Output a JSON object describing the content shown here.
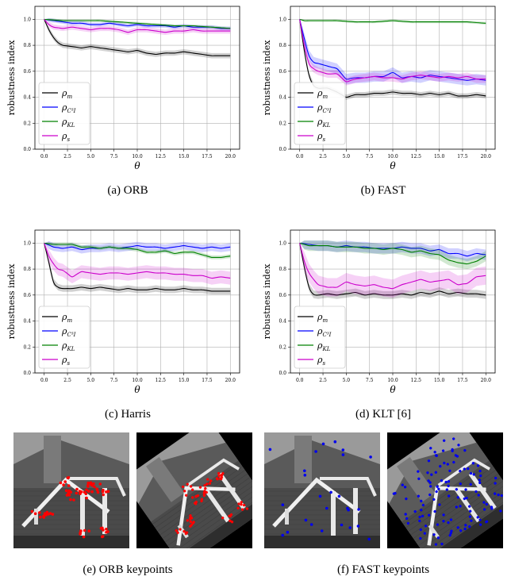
{
  "chart_data": [
    {
      "type": "line",
      "ylabel": "robustness index",
      "xlabel": "θ",
      "xlim": [
        -1,
        21
      ],
      "ylim": [
        0,
        1.1
      ],
      "xticks": [
        "0.0",
        "2.5",
        "5.0",
        "7.5",
        "10.0",
        "12.5",
        "15.0",
        "17.5",
        "20.0"
      ],
      "yticks": [
        "0.0",
        "0.2",
        "0.4",
        "0.6",
        "0.8",
        "1.0"
      ],
      "grid": true,
      "legend_placement": "lower-left",
      "caption": "(a) ORB",
      "series": [
        {
          "name": "ρm",
          "color": "#000000",
          "band": 0.02,
          "x": [
            0,
            0.5,
            1,
            1.5,
            2,
            3,
            4,
            5,
            6,
            7,
            8,
            9,
            10,
            11,
            12,
            13,
            14,
            15,
            16,
            17,
            18,
            19,
            20
          ],
          "values": [
            1.0,
            0.92,
            0.86,
            0.82,
            0.8,
            0.79,
            0.78,
            0.79,
            0.78,
            0.77,
            0.76,
            0.75,
            0.76,
            0.74,
            0.73,
            0.74,
            0.74,
            0.75,
            0.74,
            0.73,
            0.72,
            0.72,
            0.72
          ]
        },
        {
          "name": "ρC3I",
          "color": "#0000ff",
          "band": 0.015,
          "x": [
            0,
            1,
            2,
            3,
            4,
            5,
            6,
            7,
            8,
            9,
            10,
            11,
            12,
            13,
            14,
            15,
            16,
            17,
            18,
            19,
            20
          ],
          "values": [
            1.0,
            0.99,
            0.98,
            0.97,
            0.97,
            0.96,
            0.96,
            0.97,
            0.96,
            0.95,
            0.96,
            0.95,
            0.95,
            0.95,
            0.94,
            0.95,
            0.94,
            0.94,
            0.94,
            0.93,
            0.93
          ]
        },
        {
          "name": "ρKL",
          "color": "#008000",
          "band": 0.01,
          "x": [
            0,
            2,
            4,
            6,
            8,
            10,
            12,
            14,
            16,
            18,
            20
          ],
          "values": [
            1.0,
            0.99,
            0.99,
            0.99,
            0.98,
            0.97,
            0.96,
            0.95,
            0.95,
            0.94,
            0.93
          ]
        },
        {
          "name": "ρs",
          "color": "#cc00cc",
          "band": 0.02,
          "x": [
            0,
            0.5,
            1,
            2,
            3,
            4,
            5,
            6,
            7,
            8,
            9,
            10,
            11,
            12,
            13,
            14,
            15,
            16,
            17,
            18,
            19,
            20
          ],
          "values": [
            1.0,
            0.96,
            0.94,
            0.93,
            0.94,
            0.93,
            0.92,
            0.93,
            0.93,
            0.92,
            0.9,
            0.92,
            0.92,
            0.91,
            0.9,
            0.91,
            0.91,
            0.92,
            0.91,
            0.91,
            0.91,
            0.91
          ]
        }
      ]
    },
    {
      "type": "line",
      "ylabel": "robustness index",
      "xlabel": "θ",
      "xlim": [
        -1,
        21
      ],
      "ylim": [
        0,
        1.1
      ],
      "xticks": [
        "0.0",
        "2.5",
        "5.0",
        "7.5",
        "10.0",
        "12.5",
        "15.0",
        "17.5",
        "20.0"
      ],
      "yticks": [
        "0.0",
        "0.2",
        "0.4",
        "0.6",
        "0.8",
        "1.0"
      ],
      "grid": true,
      "legend_placement": "lower-left",
      "caption": "(b) FAST",
      "series": [
        {
          "name": "ρm",
          "color": "#000000",
          "band": 0.02,
          "x": [
            0,
            0.4,
            0.8,
            1.2,
            1.6,
            2,
            3,
            4,
            5,
            6,
            7,
            8,
            9,
            10,
            11,
            12,
            13,
            14,
            15,
            16,
            17,
            18,
            19,
            20
          ],
          "values": [
            1.0,
            0.8,
            0.62,
            0.52,
            0.48,
            0.47,
            0.47,
            0.44,
            0.4,
            0.42,
            0.42,
            0.43,
            0.43,
            0.44,
            0.43,
            0.43,
            0.42,
            0.43,
            0.42,
            0.43,
            0.41,
            0.41,
            0.42,
            0.41
          ]
        },
        {
          "name": "ρC3I",
          "color": "#0000ff",
          "band": 0.04,
          "x": [
            0,
            0.5,
            1,
            1.5,
            2,
            3,
            4,
            5,
            6,
            7,
            8,
            9,
            10,
            11,
            12,
            13,
            14,
            15,
            16,
            17,
            18,
            19,
            20
          ],
          "values": [
            1.0,
            0.85,
            0.72,
            0.67,
            0.66,
            0.64,
            0.62,
            0.54,
            0.55,
            0.55,
            0.56,
            0.56,
            0.59,
            0.55,
            0.56,
            0.55,
            0.57,
            0.56,
            0.55,
            0.54,
            0.53,
            0.54,
            0.53
          ]
        },
        {
          "name": "ρKL",
          "color": "#008000",
          "band": 0.01,
          "x": [
            0,
            0.5,
            1,
            2,
            4,
            6,
            8,
            10,
            12,
            14,
            16,
            18,
            20
          ],
          "values": [
            1.0,
            0.99,
            0.99,
            0.99,
            0.99,
            0.98,
            0.98,
            0.99,
            0.98,
            0.98,
            0.98,
            0.98,
            0.97
          ]
        },
        {
          "name": "ρs",
          "color": "#cc00cc",
          "band": 0.03,
          "x": [
            0,
            0.5,
            1,
            1.5,
            2,
            3,
            4,
            5,
            6,
            7,
            8,
            9,
            10,
            11,
            12,
            13,
            14,
            15,
            16,
            17,
            18,
            19,
            20
          ],
          "values": [
            1.0,
            0.8,
            0.66,
            0.62,
            0.6,
            0.58,
            0.58,
            0.52,
            0.54,
            0.55,
            0.56,
            0.55,
            0.55,
            0.54,
            0.56,
            0.57,
            0.56,
            0.55,
            0.56,
            0.55,
            0.56,
            0.54,
            0.54
          ]
        }
      ]
    },
    {
      "type": "line",
      "ylabel": "robustness index",
      "xlabel": "θ",
      "xlim": [
        -1,
        21
      ],
      "ylim": [
        0,
        1.1
      ],
      "xticks": [
        "0.0",
        "2.5",
        "5.0",
        "7.5",
        "10.0",
        "12.5",
        "15.0",
        "17.5",
        "20.0"
      ],
      "yticks": [
        "0.0",
        "0.2",
        "0.4",
        "0.6",
        "0.8",
        "1.0"
      ],
      "grid": true,
      "legend_placement": "lower-left",
      "caption": "(c) Harris",
      "series": [
        {
          "name": "ρm",
          "color": "#000000",
          "band": 0.025,
          "x": [
            0,
            0.5,
            1,
            1.5,
            2,
            3,
            4,
            5,
            6,
            7,
            8,
            9,
            10,
            11,
            12,
            13,
            14,
            15,
            16,
            17,
            18,
            19,
            20
          ],
          "values": [
            1.0,
            0.85,
            0.7,
            0.66,
            0.65,
            0.65,
            0.66,
            0.65,
            0.66,
            0.65,
            0.64,
            0.65,
            0.64,
            0.64,
            0.65,
            0.64,
            0.64,
            0.65,
            0.64,
            0.64,
            0.63,
            0.63,
            0.63
          ]
        },
        {
          "name": "ρC3I",
          "color": "#0000ff",
          "band": 0.03,
          "x": [
            0,
            1,
            2,
            3,
            4,
            5,
            6,
            7,
            8,
            9,
            10,
            11,
            12,
            13,
            14,
            15,
            16,
            17,
            18,
            19,
            20
          ],
          "values": [
            1.0,
            0.97,
            0.96,
            0.97,
            0.95,
            0.96,
            0.96,
            0.97,
            0.96,
            0.97,
            0.98,
            0.97,
            0.97,
            0.96,
            0.97,
            0.98,
            0.97,
            0.96,
            0.97,
            0.96,
            0.97
          ]
        },
        {
          "name": "ρKL",
          "color": "#008000",
          "band": 0.015,
          "x": [
            0,
            1,
            2,
            3,
            4,
            5,
            6,
            7,
            8,
            9,
            10,
            11,
            12,
            13,
            14,
            15,
            16,
            17,
            18,
            19,
            20
          ],
          "values": [
            1.0,
            0.99,
            0.99,
            0.99,
            0.97,
            0.97,
            0.96,
            0.97,
            0.96,
            0.96,
            0.95,
            0.93,
            0.93,
            0.94,
            0.92,
            0.93,
            0.93,
            0.91,
            0.89,
            0.89,
            0.9
          ]
        },
        {
          "name": "ρs",
          "color": "#cc00cc",
          "band": 0.05,
          "x": [
            0,
            0.5,
            1,
            1.5,
            2,
            3,
            4,
            5,
            6,
            7,
            8,
            9,
            10,
            11,
            12,
            13,
            14,
            15,
            16,
            17,
            18,
            19,
            20
          ],
          "values": [
            1.0,
            0.9,
            0.84,
            0.8,
            0.79,
            0.74,
            0.78,
            0.77,
            0.76,
            0.77,
            0.77,
            0.76,
            0.77,
            0.78,
            0.77,
            0.77,
            0.76,
            0.76,
            0.75,
            0.75,
            0.73,
            0.74,
            0.73
          ]
        }
      ]
    },
    {
      "type": "line",
      "ylabel": "robustness index",
      "xlabel": "θ",
      "xlim": [
        -1,
        21
      ],
      "ylim": [
        0,
        1.1
      ],
      "xticks": [
        "0.0",
        "2.5",
        "5.0",
        "7.5",
        "10.0",
        "12.5",
        "15.0",
        "17.5",
        "20.0"
      ],
      "yticks": [
        "0.0",
        "0.2",
        "0.4",
        "0.6",
        "0.8",
        "1.0"
      ],
      "grid": true,
      "legend_placement": "lower-left",
      "caption": "(d) KLT [6]",
      "series": [
        {
          "name": "ρm",
          "color": "#000000",
          "band": 0.03,
          "x": [
            0,
            0.4,
            0.8,
            1.2,
            1.6,
            2,
            3,
            4,
            5,
            6,
            7,
            8,
            9,
            10,
            11,
            12,
            13,
            14,
            15,
            16,
            17,
            18,
            19,
            20
          ],
          "values": [
            1.0,
            0.85,
            0.7,
            0.62,
            0.6,
            0.6,
            0.61,
            0.6,
            0.61,
            0.62,
            0.6,
            0.61,
            0.6,
            0.6,
            0.61,
            0.6,
            0.62,
            0.61,
            0.63,
            0.61,
            0.62,
            0.61,
            0.61,
            0.6
          ]
        },
        {
          "name": "ρC3I",
          "color": "#0000ff",
          "band": 0.04,
          "x": [
            0,
            1,
            2,
            3,
            4,
            5,
            6,
            7,
            8,
            9,
            10,
            11,
            12,
            13,
            14,
            15,
            16,
            17,
            18,
            19,
            20
          ],
          "values": [
            1.0,
            0.99,
            0.98,
            0.98,
            0.97,
            0.98,
            0.97,
            0.97,
            0.96,
            0.96,
            0.96,
            0.97,
            0.96,
            0.96,
            0.94,
            0.95,
            0.92,
            0.92,
            0.9,
            0.92,
            0.91
          ]
        },
        {
          "name": "ρKL",
          "color": "#008000",
          "band": 0.04,
          "x": [
            0,
            1,
            2,
            3,
            4,
            5,
            6,
            7,
            8,
            9,
            10,
            11,
            12,
            13,
            14,
            15,
            16,
            17,
            18,
            19,
            20
          ],
          "values": [
            1.0,
            0.98,
            0.98,
            0.98,
            0.97,
            0.97,
            0.97,
            0.96,
            0.96,
            0.95,
            0.96,
            0.95,
            0.93,
            0.94,
            0.92,
            0.91,
            0.87,
            0.85,
            0.84,
            0.86,
            0.9
          ]
        },
        {
          "name": "ρs",
          "color": "#cc00cc",
          "band": 0.07,
          "x": [
            0,
            0.5,
            1,
            1.5,
            2,
            3,
            4,
            5,
            6,
            7,
            8,
            9,
            10,
            11,
            12,
            13,
            14,
            15,
            16,
            17,
            18,
            19,
            20
          ],
          "values": [
            1.0,
            0.86,
            0.77,
            0.72,
            0.68,
            0.66,
            0.66,
            0.7,
            0.68,
            0.67,
            0.68,
            0.66,
            0.65,
            0.68,
            0.7,
            0.72,
            0.7,
            0.71,
            0.72,
            0.68,
            0.69,
            0.74,
            0.75
          ]
        }
      ]
    }
  ],
  "images": {
    "orb_caption": "(e) ORB keypoints",
    "fast_caption": "(f) FAST keypoints"
  },
  "colors": {
    "orb_keypoints": "#ff0000",
    "fast_keypoints": "#0000ee",
    "grid": "#b0b0b0"
  }
}
